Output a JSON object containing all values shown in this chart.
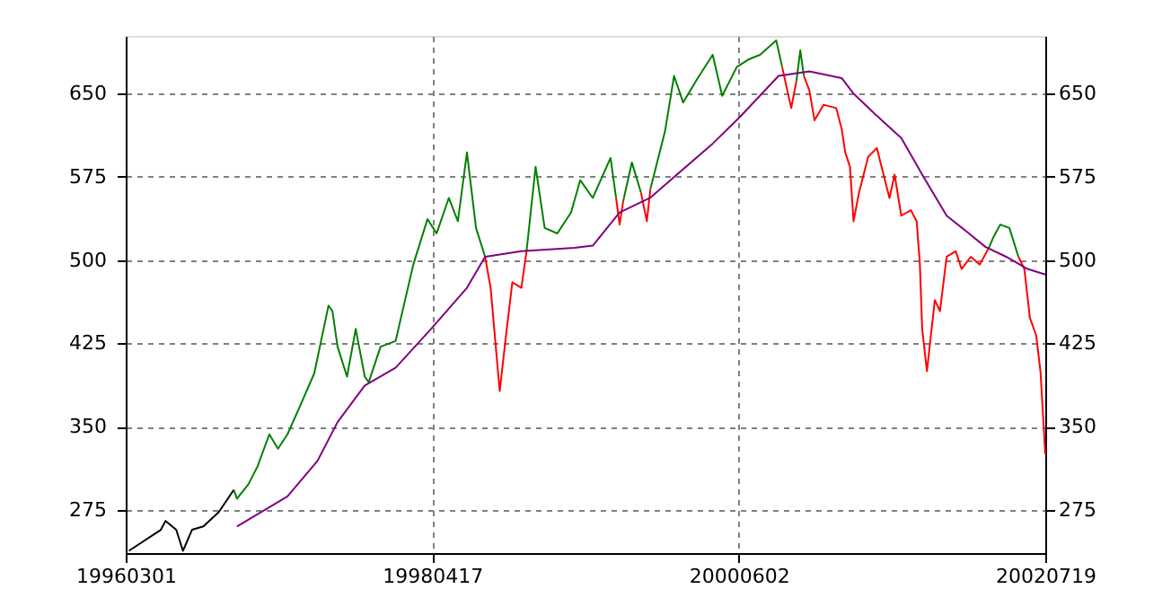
{
  "chart_data": {
    "type": "line",
    "xlim": [
      "1996-03-01",
      "2002-07-19"
    ],
    "xticks": [
      {
        "value": "1996-03-01",
        "label": "19960301"
      },
      {
        "value": "1998-04-17",
        "label": "19980417"
      },
      {
        "value": "2000-06-02",
        "label": "20000602"
      },
      {
        "value": "2002-07-19",
        "label": "20020719"
      }
    ],
    "ylim": [
      236,
      702
    ],
    "yticks": [
      275,
      350,
      425,
      500,
      575,
      650
    ],
    "y2lim": [
      236,
      702
    ],
    "y2ticks": [
      275,
      350,
      425,
      500,
      575,
      650
    ],
    "grid": true,
    "line_style": "solid",
    "marker": "none",
    "series": [
      {
        "color": "#000000",
        "x": [
          "1996-03-09",
          "1996-05-29",
          "1996-06-10",
          "1996-07-07",
          "1996-07-24",
          "1996-08-16",
          "1996-09-14",
          "1996-10-23",
          "1996-11-30"
        ],
        "values": [
          238,
          257,
          265,
          257,
          238,
          257,
          260,
          273,
          293
        ]
      },
      {
        "color": "#008000",
        "x": [
          "1996-11-30",
          "1996-12-08",
          "1997-01-06",
          "1997-01-29",
          "1997-02-28",
          "1997-03-22",
          "1997-04-15",
          "1997-05-15",
          "1997-06-22",
          "1997-07-28",
          "1997-08-07",
          "1997-08-20",
          "1997-09-13",
          "1997-10-05",
          "1997-10-28",
          "1997-11-07",
          "1997-12-07",
          "1998-01-14",
          "1998-02-28",
          "1998-04-05",
          "1998-04-28",
          "1998-05-29",
          "1998-06-21",
          "1998-07-14",
          "1998-08-06",
          "1998-08-29"
        ],
        "values": [
          293,
          285,
          298,
          314,
          343,
          330,
          343,
          367,
          398,
          459,
          454,
          422,
          395,
          438,
          395,
          390,
          422,
          427,
          496,
          537,
          524,
          556,
          535,
          597,
          529,
          503
        ]
      },
      {
        "color": "#ff0000",
        "x": [
          "1998-08-29",
          "1998-09-12",
          "1998-10-05",
          "1998-10-21",
          "1998-11-06",
          "1998-11-29",
          "1998-12-12"
        ],
        "values": [
          503,
          475,
          382,
          432,
          480,
          475,
          508
        ]
      },
      {
        "color": "#008000",
        "x": [
          "1998-12-12",
          "1999-01-04",
          "1999-01-27",
          "1999-02-28",
          "1999-04-04",
          "1999-04-27",
          "1999-05-29",
          "1999-07-13",
          "1999-07-27"
        ],
        "values": [
          508,
          584,
          529,
          524,
          543,
          572,
          556,
          592,
          556
        ]
      },
      {
        "color": "#ff0000",
        "x": [
          "1999-07-27",
          "1999-08-05",
          "1999-08-14"
        ],
        "values": [
          556,
          532,
          553
        ]
      },
      {
        "color": "#008000",
        "x": [
          "1999-08-14",
          "1999-09-05",
          "1999-09-28"
        ],
        "values": [
          553,
          588,
          561
        ]
      },
      {
        "color": "#ff0000",
        "x": [
          "1999-09-28",
          "1999-10-13",
          "1999-10-22"
        ],
        "values": [
          561,
          535,
          564
        ]
      },
      {
        "color": "#008000",
        "x": [
          "1999-10-22",
          "1999-11-28",
          "1999-12-21",
          "2000-01-13",
          "2000-02-19",
          "2000-03-28",
          "2000-04-21",
          "2000-05-28",
          "2000-06-28",
          "2000-07-26",
          "2000-09-05",
          "2000-09-20"
        ],
        "values": [
          564,
          616,
          666,
          642,
          664,
          685,
          648,
          674,
          681,
          685,
          698,
          674
        ]
      },
      {
        "color": "#ff0000",
        "x": [
          "2000-09-20",
          "2000-10-13",
          "2000-10-26"
        ],
        "values": [
          674,
          637,
          661
        ]
      },
      {
        "color": "#008000",
        "x": [
          "2000-10-26",
          "2000-11-05",
          "2000-11-14"
        ],
        "values": [
          661,
          689,
          666
        ]
      },
      {
        "color": "#ff0000",
        "x": [
          "2000-11-14",
          "2000-11-28",
          "2000-12-11",
          "2001-01-03",
          "2001-02-04",
          "2001-02-18",
          "2001-02-27",
          "2001-03-11",
          "2001-03-20",
          "2001-04-03",
          "2001-04-26",
          "2001-05-18",
          "2001-06-04",
          "2001-06-19",
          "2001-07-02",
          "2001-07-19",
          "2001-08-12",
          "2001-08-27",
          "2001-09-04",
          "2001-09-10",
          "2001-09-22",
          "2001-10-12",
          "2001-10-25",
          "2001-11-11",
          "2001-12-04",
          "2001-12-19",
          "2002-01-11",
          "2002-02-03",
          "2002-02-26"
        ],
        "values": [
          666,
          653,
          626,
          640,
          637,
          618,
          597,
          584,
          535,
          561,
          593,
          601,
          577,
          556,
          577,
          540,
          545,
          535,
          497,
          438,
          400,
          464,
          454,
          503,
          508,
          492,
          503,
          496,
          511
        ]
      },
      {
        "color": "#008000",
        "x": [
          "2002-02-26",
          "2002-03-10",
          "2002-03-27",
          "2002-04-19",
          "2002-05-12"
        ],
        "values": [
          511,
          521,
          532,
          529,
          503
        ]
      },
      {
        "color": "#ff0000",
        "x": [
          "2002-05-12",
          "2002-05-27",
          "2002-06-10",
          "2002-06-26",
          "2002-07-07",
          "2002-07-19"
        ],
        "values": [
          503,
          492,
          448,
          432,
          399,
          325
        ]
      },
      {
        "color": "#800080",
        "x": [
          "1996-12-08",
          "1997-04-15",
          "1997-06-30",
          "1997-08-20",
          "1997-10-28",
          "1998-01-14",
          "1998-04-14",
          "1998-07-14",
          "1998-08-29",
          "1998-11-29",
          "1999-04-13",
          "1999-05-29",
          "1999-08-05",
          "1999-10-21",
          "1999-12-28",
          "2000-03-28",
          "2000-06-05",
          "2000-09-11",
          "2000-11-28",
          "2001-02-18",
          "2001-03-20",
          "2001-05-12",
          "2001-07-19",
          "2001-09-10",
          "2001-11-11",
          "2001-12-27",
          "2002-02-17",
          "2002-04-11",
          "2002-06-04",
          "2002-07-19"
        ],
        "values": [
          260,
          287,
          319,
          354,
          387,
          403,
          438,
          475,
          503,
          508,
          511,
          513,
          543,
          556,
          577,
          605,
          629,
          666,
          670,
          664,
          650,
          632,
          610,
          577,
          540,
          527,
          512,
          503,
          492,
          487
        ]
      }
    ]
  }
}
